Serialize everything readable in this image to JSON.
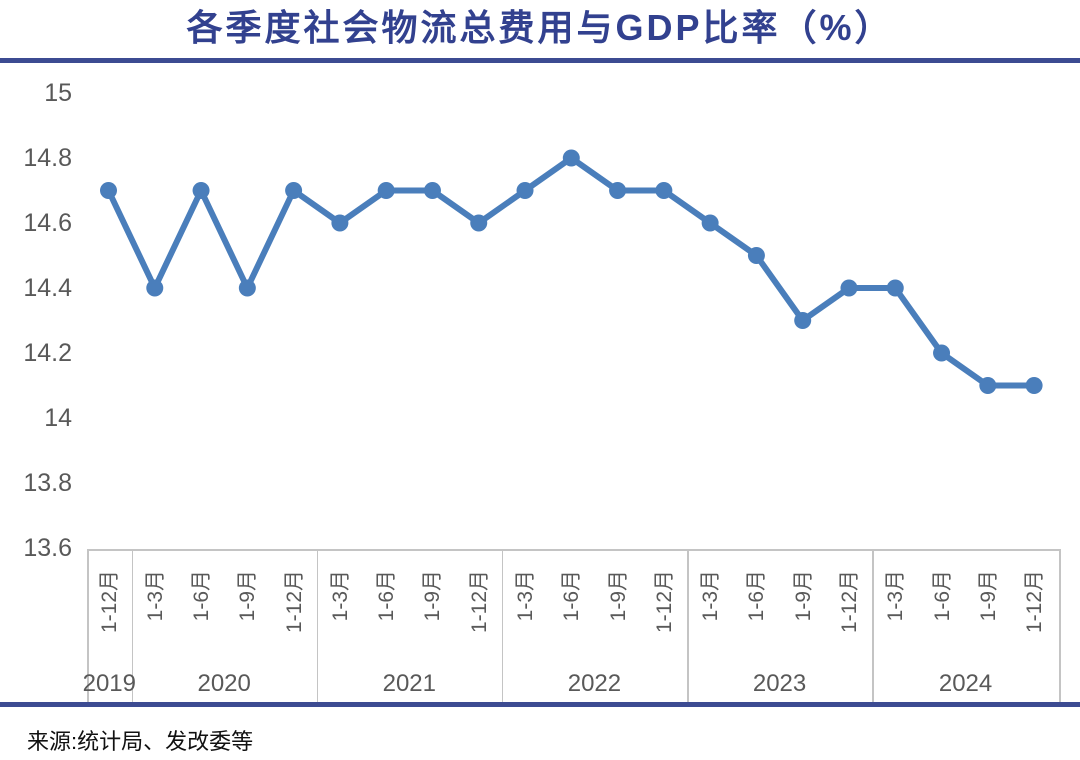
{
  "title": "各季度社会物流总费用与GDP比率（%）",
  "source": "来源:统计局、发改委等",
  "colors": {
    "title_navy": "#32418F",
    "rule_navy": "#3C4B92",
    "line_blue": "#4A7EBB",
    "label_gray": "#595959",
    "border_gray": "#C4C4C4"
  },
  "chart_data": {
    "type": "line",
    "title": "各季度社会物流总费用与GDP比率（%）",
    "ylim": [
      13.6,
      15
    ],
    "grid": false,
    "legend": "none",
    "yticks": [
      {
        "label": "15",
        "value": 15
      },
      {
        "label": "14.8",
        "value": 14.8
      },
      {
        "label": "14.6",
        "value": 14.6
      },
      {
        "label": "14.4",
        "value": 14.4
      },
      {
        "label": "14.2",
        "value": 14.2
      },
      {
        "label": "14",
        "value": 14
      },
      {
        "label": "13.8",
        "value": 13.8
      },
      {
        "label": "13.6",
        "value": 13.6
      }
    ],
    "groups": [
      {
        "year": "2019",
        "points": [
          {
            "label": "1-12月",
            "value": 14.7
          }
        ]
      },
      {
        "year": "2020",
        "points": [
          {
            "label": "1-3月",
            "value": 14.4
          },
          {
            "label": "1-6月",
            "value": 14.7
          },
          {
            "label": "1-9月",
            "value": 14.4
          },
          {
            "label": "1-12月",
            "value": 14.7
          }
        ]
      },
      {
        "year": "2021",
        "points": [
          {
            "label": "1-3月",
            "value": 14.6
          },
          {
            "label": "1-6月",
            "value": 14.7
          },
          {
            "label": "1-9月",
            "value": 14.7
          },
          {
            "label": "1-12月",
            "value": 14.6
          }
        ]
      },
      {
        "year": "2022",
        "points": [
          {
            "label": "1-3月",
            "value": 14.7
          },
          {
            "label": "1-6月",
            "value": 14.8
          },
          {
            "label": "1-9月",
            "value": 14.7
          },
          {
            "label": "1-12月",
            "value": 14.7
          }
        ]
      },
      {
        "year": "2023",
        "points": [
          {
            "label": "1-3月",
            "value": 14.6
          },
          {
            "label": "1-6月",
            "value": 14.5
          },
          {
            "label": "1-9月",
            "value": 14.3
          },
          {
            "label": "1-12月",
            "value": 14.4
          }
        ]
      },
      {
        "year": "2024",
        "points": [
          {
            "label": "1-3月",
            "value": 14.4
          },
          {
            "label": "1-6月",
            "value": 14.2
          },
          {
            "label": "1-9月",
            "value": 14.1
          },
          {
            "label": "1-12月",
            "value": 14.1
          }
        ]
      }
    ]
  }
}
